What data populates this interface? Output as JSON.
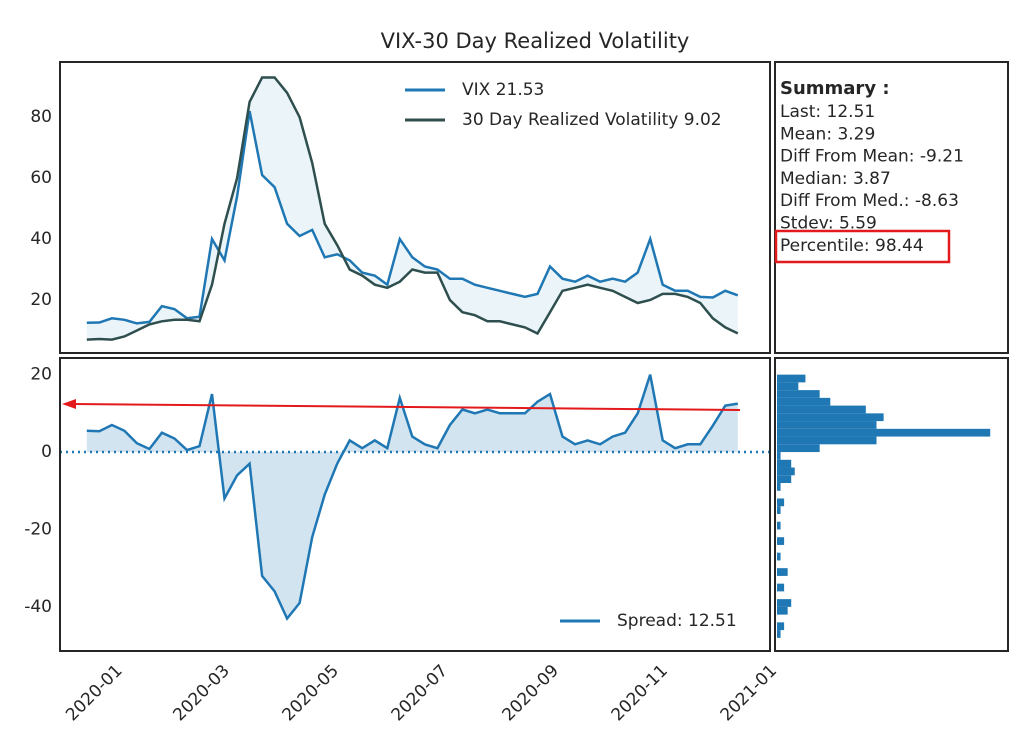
{
  "chart_data": [
    {
      "type": "line",
      "title": "VIX-30 Day Realized Volatility",
      "x": [
        "2019-12-16",
        "2019-12-23",
        "2019-12-30",
        "2020-01-06",
        "2020-01-13",
        "2020-01-20",
        "2020-01-27",
        "2020-02-03",
        "2020-02-10",
        "2020-02-17",
        "2020-02-24",
        "2020-03-02",
        "2020-03-09",
        "2020-03-16",
        "2020-03-23",
        "2020-03-30",
        "2020-04-06",
        "2020-04-13",
        "2020-04-20",
        "2020-04-27",
        "2020-05-04",
        "2020-05-11",
        "2020-05-18",
        "2020-05-25",
        "2020-06-01",
        "2020-06-08",
        "2020-06-15",
        "2020-06-22",
        "2020-06-29",
        "2020-07-06",
        "2020-07-13",
        "2020-07-20",
        "2020-07-27",
        "2020-08-03",
        "2020-08-10",
        "2020-08-17",
        "2020-08-24",
        "2020-08-31",
        "2020-09-07",
        "2020-09-14",
        "2020-09-21",
        "2020-09-28",
        "2020-10-05",
        "2020-10-12",
        "2020-10-19",
        "2020-10-26",
        "2020-11-02",
        "2020-11-09",
        "2020-11-16",
        "2020-11-23",
        "2020-11-30",
        "2020-12-07",
        "2020-12-14"
      ],
      "series": [
        {
          "name": "VIX 21.53",
          "color": "#1f77b4",
          "values": [
            12.5,
            12.6,
            14,
            13.5,
            12.3,
            12.8,
            18,
            17,
            14,
            14.5,
            40,
            33,
            54,
            82,
            61,
            57,
            45,
            41,
            43,
            34,
            35,
            33,
            29,
            28,
            25,
            40,
            34,
            31,
            30,
            27,
            27,
            25,
            24,
            23,
            22,
            21,
            22,
            31,
            27,
            26,
            28,
            26,
            27,
            26,
            29,
            40,
            25,
            23,
            23,
            21,
            20.8,
            23,
            21.53
          ]
        },
        {
          "name": "30 Day Realized Volatility 9.02",
          "color": "#2f4f4f",
          "values": [
            7,
            7.2,
            7,
            8,
            10,
            12,
            13,
            13.5,
            13.5,
            13,
            25,
            45,
            60,
            85,
            93,
            93,
            88,
            80,
            65,
            45,
            38,
            30,
            28,
            25,
            24,
            26,
            30,
            29,
            29,
            20,
            16,
            15,
            13,
            13,
            12,
            11,
            9,
            16,
            23,
            24,
            25,
            24,
            23,
            21,
            19,
            20,
            22,
            22,
            21,
            19,
            14,
            11,
            9.02
          ]
        }
      ],
      "xlim": [
        "2019-12",
        "2021-01"
      ],
      "ylim": [
        2.6,
        98.1
      ],
      "yticks": [
        20,
        40,
        60,
        80
      ]
    },
    {
      "type": "area",
      "x": [
        "2019-12-16",
        "2019-12-23",
        "2019-12-30",
        "2020-01-06",
        "2020-01-13",
        "2020-01-20",
        "2020-01-27",
        "2020-02-03",
        "2020-02-10",
        "2020-02-17",
        "2020-02-24",
        "2020-03-02",
        "2020-03-09",
        "2020-03-16",
        "2020-03-23",
        "2020-03-30",
        "2020-04-06",
        "2020-04-13",
        "2020-04-20",
        "2020-04-27",
        "2020-05-04",
        "2020-05-11",
        "2020-05-18",
        "2020-05-25",
        "2020-06-01",
        "2020-06-08",
        "2020-06-15",
        "2020-06-22",
        "2020-06-29",
        "2020-07-06",
        "2020-07-13",
        "2020-07-20",
        "2020-07-27",
        "2020-08-03",
        "2020-08-10",
        "2020-08-17",
        "2020-08-24",
        "2020-08-31",
        "2020-09-07",
        "2020-09-14",
        "2020-09-21",
        "2020-09-28",
        "2020-10-05",
        "2020-10-12",
        "2020-10-19",
        "2020-10-26",
        "2020-11-02",
        "2020-11-09",
        "2020-11-16",
        "2020-11-23",
        "2020-11-30",
        "2020-12-07",
        "2020-12-14"
      ],
      "series": [
        {
          "name": "Spread: 12.51",
          "color": "#1f77b4",
          "values": [
            5.5,
            5.4,
            7,
            5.5,
            2.3,
            0.8,
            5,
            3.5,
            0.5,
            1.5,
            15,
            -12,
            -6,
            -3,
            -32,
            -36,
            -43,
            -39,
            -22,
            -11,
            -3,
            3,
            1,
            3,
            1,
            14,
            4,
            2,
            1,
            7,
            11,
            10,
            11,
            10,
            10,
            10,
            13,
            15,
            4,
            2,
            3,
            2,
            4,
            5,
            10,
            20,
            3,
            1,
            2,
            2,
            6.8,
            12,
            12.51
          ]
        }
      ],
      "xlim": [
        "2019-12",
        "2021-01"
      ],
      "xticks": [
        "2020-01",
        "2020-03",
        "2020-05",
        "2020-07",
        "2020-09",
        "2020-11",
        "2021-01"
      ],
      "ylim": [
        -51.4,
        24.3
      ],
      "yticks": [
        -40,
        -20,
        0,
        20
      ]
    },
    {
      "type": "histogram",
      "orientation": "horizontal",
      "color": "#1f77b4",
      "bins": [
        -48,
        -46,
        -44,
        -42,
        -40,
        -38,
        -36,
        -34,
        -32,
        -30,
        -28,
        -26,
        -24,
        -22,
        -20,
        -18,
        -16,
        -14,
        -12,
        -10,
        -8,
        -6,
        -4,
        -2,
        0,
        2,
        4,
        6,
        8,
        10,
        12,
        14,
        16,
        18,
        20
      ],
      "counts": [
        1,
        2,
        0,
        3,
        4,
        0,
        2,
        0,
        3,
        0,
        1,
        0,
        2,
        0,
        1,
        0,
        1,
        2,
        0,
        1,
        4,
        5,
        4,
        1,
        12,
        28,
        60,
        28,
        30,
        25,
        15,
        12,
        6,
        8
      ],
      "xlim": [
        0,
        65
      ],
      "ylim": [
        -51.4,
        24.3
      ]
    }
  ],
  "summary": {
    "title": "Summary :",
    "lines": [
      "Last: 12.51",
      "Mean: 3.29",
      "Diff From Mean: -9.21",
      "Median: 3.87",
      "Diff From Med.: -8.63",
      "Stdev: 5.59",
      "Percentile: 98.44"
    ]
  }
}
